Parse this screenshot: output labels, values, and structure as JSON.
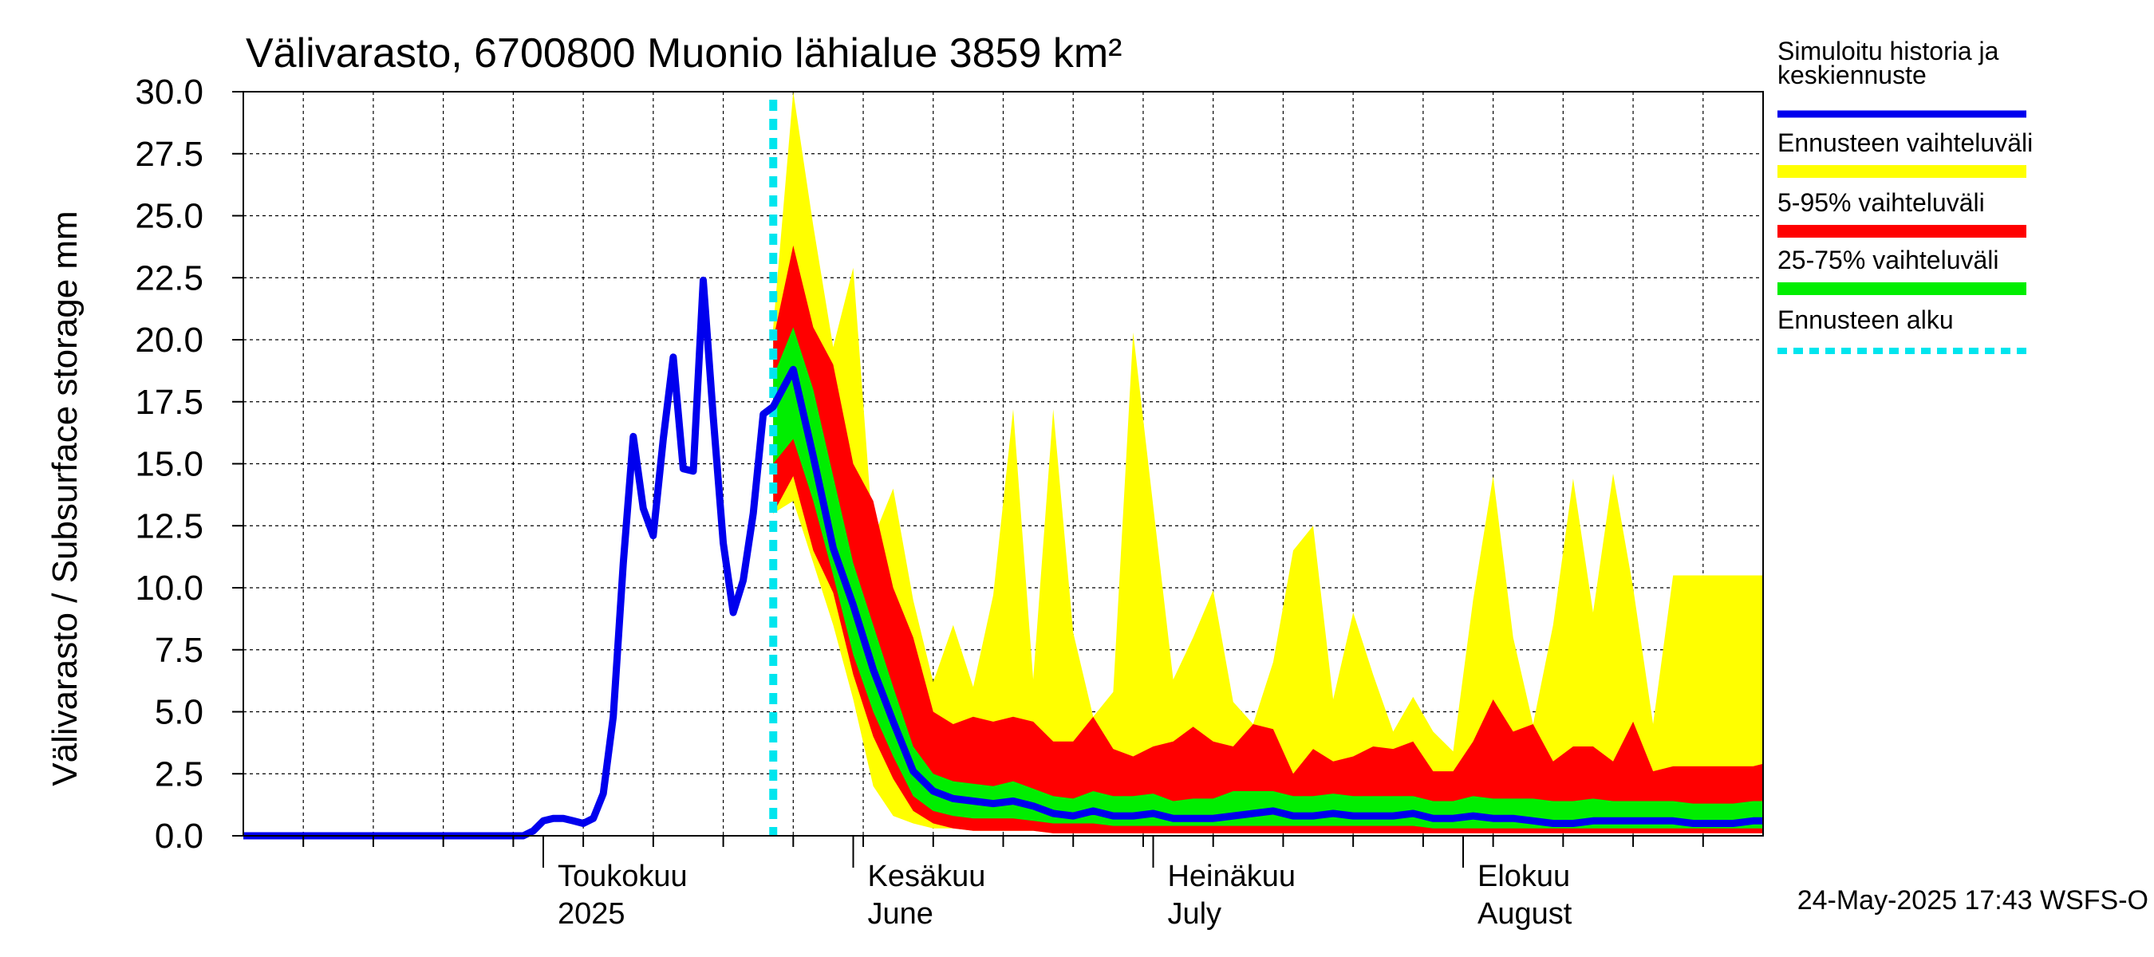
{
  "chart_data": {
    "type": "area",
    "title": "Välivarasto, 6700800 Muonio lähialue 3859 km²",
    "ylabel": "Välivarasto / Subsurface storage  mm",
    "ylim": [
      0,
      30
    ],
    "yticks": [
      "0.0",
      "2.5",
      "5.0",
      "7.5",
      "10.0",
      "12.5",
      "15.0",
      "17.5",
      "20.0",
      "22.5",
      "25.0",
      "27.5",
      "30.0"
    ],
    "x_start": "2025-04-01",
    "x_end": "2025-08-31",
    "forecast_start": "2025-05-24",
    "months": [
      {
        "date": "2025-05-01",
        "fi": "Toukokuu",
        "en": "2025"
      },
      {
        "date": "2025-06-01",
        "fi": "Kesäkuu",
        "en": "June"
      },
      {
        "date": "2025-07-01",
        "fi": "Heinäkuu",
        "en": "July"
      },
      {
        "date": "2025-08-01",
        "fi": "Elokuu",
        "en": "August"
      }
    ],
    "legend": [
      {
        "label": "Simuloitu historia ja",
        "label2": "keskiennuste",
        "color": "#0000ee",
        "style": "line"
      },
      {
        "label": "Ennusteen vaihteluväli",
        "color": "#ffff00",
        "style": "band"
      },
      {
        "label": "5-95% vaihteluväli",
        "color": "#ff0000",
        "style": "band"
      },
      {
        "label": "25-75% vaihteluväli",
        "color": "#00ee00",
        "style": "band"
      },
      {
        "label": "Ennusteen alku",
        "color": "#00e5ee",
        "style": "dashed"
      }
    ],
    "footer": "24-May-2025 17:43 WSFS-O",
    "colors": {
      "history": "#0000ee",
      "full_range": "#ffff00",
      "p5_95": "#ff0000",
      "p25_75": "#00ee00",
      "forecast_start": "#00e5ee"
    },
    "history": {
      "x": [
        "2025-04-01",
        "2025-04-02",
        "2025-04-03",
        "2025-04-04",
        "2025-04-05",
        "2025-04-06",
        "2025-04-07",
        "2025-04-08",
        "2025-04-09",
        "2025-04-10",
        "2025-04-11",
        "2025-04-12",
        "2025-04-13",
        "2025-04-14",
        "2025-04-15",
        "2025-04-16",
        "2025-04-17",
        "2025-04-18",
        "2025-04-19",
        "2025-04-20",
        "2025-04-21",
        "2025-04-22",
        "2025-04-23",
        "2025-04-24",
        "2025-04-25",
        "2025-04-26",
        "2025-04-27",
        "2025-04-28",
        "2025-04-29",
        "2025-04-30",
        "2025-05-01",
        "2025-05-02",
        "2025-05-03",
        "2025-05-04",
        "2025-05-05",
        "2025-05-06",
        "2025-05-07",
        "2025-05-08",
        "2025-05-09",
        "2025-05-10",
        "2025-05-11",
        "2025-05-12",
        "2025-05-13",
        "2025-05-14",
        "2025-05-15",
        "2025-05-16",
        "2025-05-17",
        "2025-05-18",
        "2025-05-19",
        "2025-05-20",
        "2025-05-21",
        "2025-05-22",
        "2025-05-23",
        "2025-05-24"
      ],
      "y": [
        0,
        0,
        0,
        0,
        0,
        0,
        0,
        0,
        0,
        0,
        0,
        0,
        0,
        0,
        0,
        0,
        0,
        0,
        0,
        0,
        0,
        0,
        0,
        0,
        0,
        0,
        0,
        0,
        0,
        0.2,
        0.6,
        0.7,
        0.7,
        0.6,
        0.5,
        0.7,
        1.7,
        4.8,
        11.0,
        16.1,
        13.2,
        12.1,
        16.0,
        19.3,
        14.8,
        14.7,
        22.4,
        16.9,
        11.8,
        9.0,
        10.3,
        13.0,
        17.0,
        17.3
      ]
    },
    "forecast": {
      "x": [
        "2025-05-24",
        "2025-05-26",
        "2025-05-28",
        "2025-05-30",
        "2025-06-01",
        "2025-06-03",
        "2025-06-05",
        "2025-06-07",
        "2025-06-09",
        "2025-06-11",
        "2025-06-13",
        "2025-06-15",
        "2025-06-17",
        "2025-06-19",
        "2025-06-21",
        "2025-06-23",
        "2025-06-25",
        "2025-06-27",
        "2025-06-29",
        "2025-07-01",
        "2025-07-03",
        "2025-07-05",
        "2025-07-07",
        "2025-07-09",
        "2025-07-11",
        "2025-07-13",
        "2025-07-15",
        "2025-07-17",
        "2025-07-19",
        "2025-07-21",
        "2025-07-23",
        "2025-07-25",
        "2025-07-27",
        "2025-07-29",
        "2025-07-31",
        "2025-08-02",
        "2025-08-04",
        "2025-08-06",
        "2025-08-08",
        "2025-08-10",
        "2025-08-12",
        "2025-08-14",
        "2025-08-16",
        "2025-08-18",
        "2025-08-20",
        "2025-08-22",
        "2025-08-24",
        "2025-08-26",
        "2025-08-28",
        "2025-08-30",
        "2025-08-31"
      ],
      "median": [
        17.3,
        18.8,
        15.3,
        11.6,
        9.3,
        6.7,
        4.6,
        2.6,
        1.8,
        1.5,
        1.4,
        1.3,
        1.4,
        1.2,
        0.9,
        0.8,
        1.0,
        0.8,
        0.8,
        0.9,
        0.7,
        0.7,
        0.7,
        0.8,
        0.9,
        1.0,
        0.8,
        0.8,
        0.9,
        0.8,
        0.8,
        0.8,
        0.9,
        0.7,
        0.7,
        0.8,
        0.7,
        0.7,
        0.6,
        0.5,
        0.5,
        0.6,
        0.6,
        0.6,
        0.6,
        0.6,
        0.5,
        0.5,
        0.5,
        0.6,
        0.6
      ],
      "p25": [
        15.0,
        16.0,
        13.5,
        10.5,
        7.3,
        5.0,
        3.2,
        1.6,
        1.0,
        0.8,
        0.7,
        0.7,
        0.7,
        0.6,
        0.5,
        0.5,
        0.5,
        0.4,
        0.4,
        0.4,
        0.4,
        0.4,
        0.4,
        0.4,
        0.4,
        0.4,
        0.4,
        0.4,
        0.4,
        0.4,
        0.4,
        0.4,
        0.4,
        0.3,
        0.3,
        0.3,
        0.3,
        0.3,
        0.3,
        0.3,
        0.3,
        0.3,
        0.3,
        0.3,
        0.3,
        0.3,
        0.3,
        0.3,
        0.3,
        0.3,
        0.3
      ],
      "p75": [
        18.5,
        20.5,
        18.0,
        14.5,
        11.0,
        8.5,
        6.0,
        3.6,
        2.5,
        2.2,
        2.1,
        2.0,
        2.2,
        1.9,
        1.6,
        1.5,
        1.8,
        1.6,
        1.6,
        1.7,
        1.4,
        1.5,
        1.5,
        1.8,
        1.8,
        1.8,
        1.6,
        1.6,
        1.7,
        1.6,
        1.6,
        1.6,
        1.6,
        1.4,
        1.4,
        1.6,
        1.5,
        1.5,
        1.5,
        1.4,
        1.4,
        1.5,
        1.4,
        1.4,
        1.4,
        1.4,
        1.3,
        1.3,
        1.3,
        1.4,
        1.4
      ],
      "p5": [
        13.0,
        14.5,
        11.5,
        9.8,
        6.5,
        4.0,
        2.3,
        1.0,
        0.5,
        0.3,
        0.2,
        0.2,
        0.2,
        0.2,
        0.1,
        0.1,
        0.1,
        0.1,
        0.1,
        0.1,
        0.1,
        0.1,
        0.1,
        0.1,
        0.1,
        0.1,
        0.1,
        0.1,
        0.1,
        0.1,
        0.1,
        0.1,
        0.1,
        0.1,
        0.1,
        0.1,
        0.1,
        0.1,
        0.1,
        0.1,
        0.1,
        0.1,
        0.1,
        0.1,
        0.1,
        0.1,
        0.1,
        0.1,
        0.1,
        0.1,
        0.1
      ],
      "p95": [
        20.0,
        23.8,
        20.5,
        19.0,
        15.0,
        13.5,
        10.0,
        8.0,
        5.0,
        4.5,
        4.8,
        4.6,
        4.8,
        4.6,
        3.8,
        3.8,
        4.8,
        3.5,
        3.2,
        3.6,
        3.8,
        4.4,
        3.8,
        3.6,
        4.5,
        4.3,
        2.5,
        3.5,
        3.0,
        3.2,
        3.6,
        3.5,
        3.8,
        2.6,
        2.6,
        3.8,
        5.5,
        4.2,
        4.5,
        3.0,
        3.6,
        3.6,
        3.0,
        4.6,
        2.6,
        2.8,
        2.8,
        2.8,
        2.8,
        2.8,
        2.9
      ],
      "min": [
        13.0,
        13.5,
        11.0,
        8.5,
        5.5,
        2.0,
        0.8,
        0.5,
        0.3,
        0.3,
        0.2,
        0.2,
        0.2,
        0.2,
        0.1,
        0.1,
        0.1,
        0.1,
        0.1,
        0.1,
        0.1,
        0.1,
        0.1,
        0.1,
        0.1,
        0.1,
        0.1,
        0.1,
        0.1,
        0.1,
        0.1,
        0.1,
        0.1,
        0.1,
        0.1,
        0.1,
        0.1,
        0.1,
        0.1,
        0.1,
        0.1,
        0.1,
        0.1,
        0.1,
        0.1,
        0.1,
        0.1,
        0.1,
        0.1,
        0.1,
        0.1
      ],
      "max": [
        20.5,
        30.0,
        24.6,
        19.7,
        22.9,
        12.0,
        14.0,
        9.5,
        6.2,
        8.5,
        6.0,
        9.7,
        17.2,
        6.3,
        17.2,
        8.2,
        4.8,
        5.8,
        20.3,
        13.3,
        6.3,
        8.0,
        9.9,
        5.4,
        4.5,
        7.0,
        11.5,
        12.5,
        5.5,
        9.0,
        6.5,
        4.2,
        5.6,
        4.2,
        3.4,
        9.5,
        14.5,
        8.0,
        4.5,
        8.5,
        14.4,
        9.0,
        14.6,
        10.0,
        4.5,
        10.5,
        10.5,
        10.5,
        10.5,
        10.5,
        10.5
      ]
    }
  }
}
